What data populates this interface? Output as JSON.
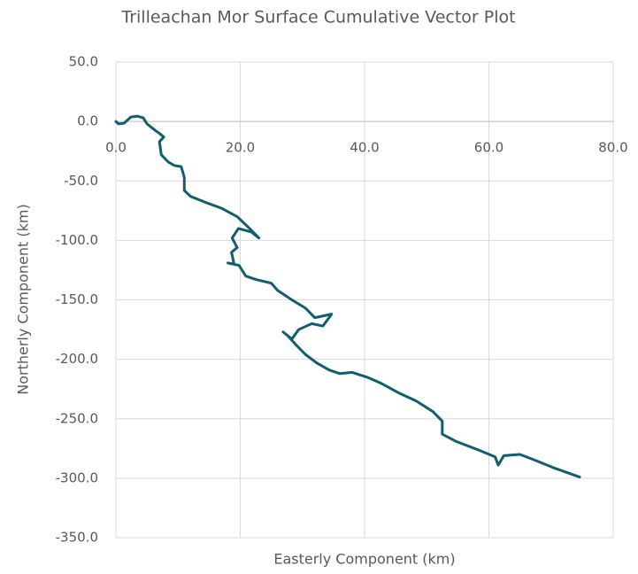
{
  "chart_data": {
    "type": "line",
    "title": "Trilleachan Mor Surface Cumulative Vector Plot",
    "x_label": "Easterly Component (km)",
    "y_label": "Northerly Component (km)",
    "color": "#135e6e",
    "grid": true,
    "xlim": [
      0,
      80
    ],
    "ylim": [
      -350,
      50
    ],
    "xticks": [
      {
        "value": 0,
        "label": "0.0"
      },
      {
        "value": 20,
        "label": "20.0"
      },
      {
        "value": 40,
        "label": "40.0"
      },
      {
        "value": 60,
        "label": "60.0"
      },
      {
        "value": 80,
        "label": "80.0"
      }
    ],
    "yticks": [
      {
        "value": 50,
        "label": "50.0"
      },
      {
        "value": 0,
        "label": "0.0"
      },
      {
        "value": -50,
        "label": "-50.0"
      },
      {
        "value": -100,
        "label": "-100.0"
      },
      {
        "value": -150,
        "label": "-150.0"
      },
      {
        "value": -200,
        "label": "-200.0"
      },
      {
        "value": -250,
        "label": "-250.0"
      },
      {
        "value": -300,
        "label": "-300.0"
      },
      {
        "value": -350,
        "label": "-350.0"
      }
    ],
    "x": [
      0,
      0.4,
      1.3,
      2.4,
      3.4,
      4.4,
      5,
      6.3,
      7,
      7.7,
      7,
      7.3,
      8.4,
      9.4,
      10.5,
      11,
      11,
      12,
      14.4,
      17,
      19.5,
      21.5,
      23,
      21.8,
      19.7,
      18.7,
      19.5,
      18.6,
      19,
      18,
      19.8,
      20.9,
      22.6,
      25,
      26,
      28.3,
      30.5,
      32,
      34.7,
      33.3,
      31.5,
      29.4,
      28.3,
      26.9,
      27.6,
      29,
      30.5,
      32.3,
      34.3,
      36,
      38,
      40.4,
      42.6,
      45.4,
      48.3,
      51,
      52.5,
      52.5,
      54.7,
      58.2,
      61,
      61.5,
      62.4,
      65,
      67.5,
      70.3,
      74.6
    ],
    "values": [
      0,
      -2,
      -1.5,
      3.7,
      4.5,
      3,
      -2,
      -7.4,
      -10,
      -13,
      -17,
      -28,
      -34,
      -37,
      -38,
      -47,
      -58,
      -63,
      -68,
      -73,
      -80,
      -90,
      -98,
      -93,
      -90,
      -98,
      -106,
      -110,
      -120,
      -119,
      -121,
      -130,
      -133,
      -136,
      -142,
      -150,
      -157,
      -165,
      -162,
      -172,
      -170,
      -175,
      -183,
      -177,
      -180,
      -188,
      -196,
      -203,
      -209,
      -212,
      -211,
      -215,
      -220,
      -228,
      -235,
      -244,
      -252,
      -263,
      -269,
      -276,
      -282,
      -289,
      -281,
      -280,
      -285,
      -291,
      -299
    ]
  }
}
